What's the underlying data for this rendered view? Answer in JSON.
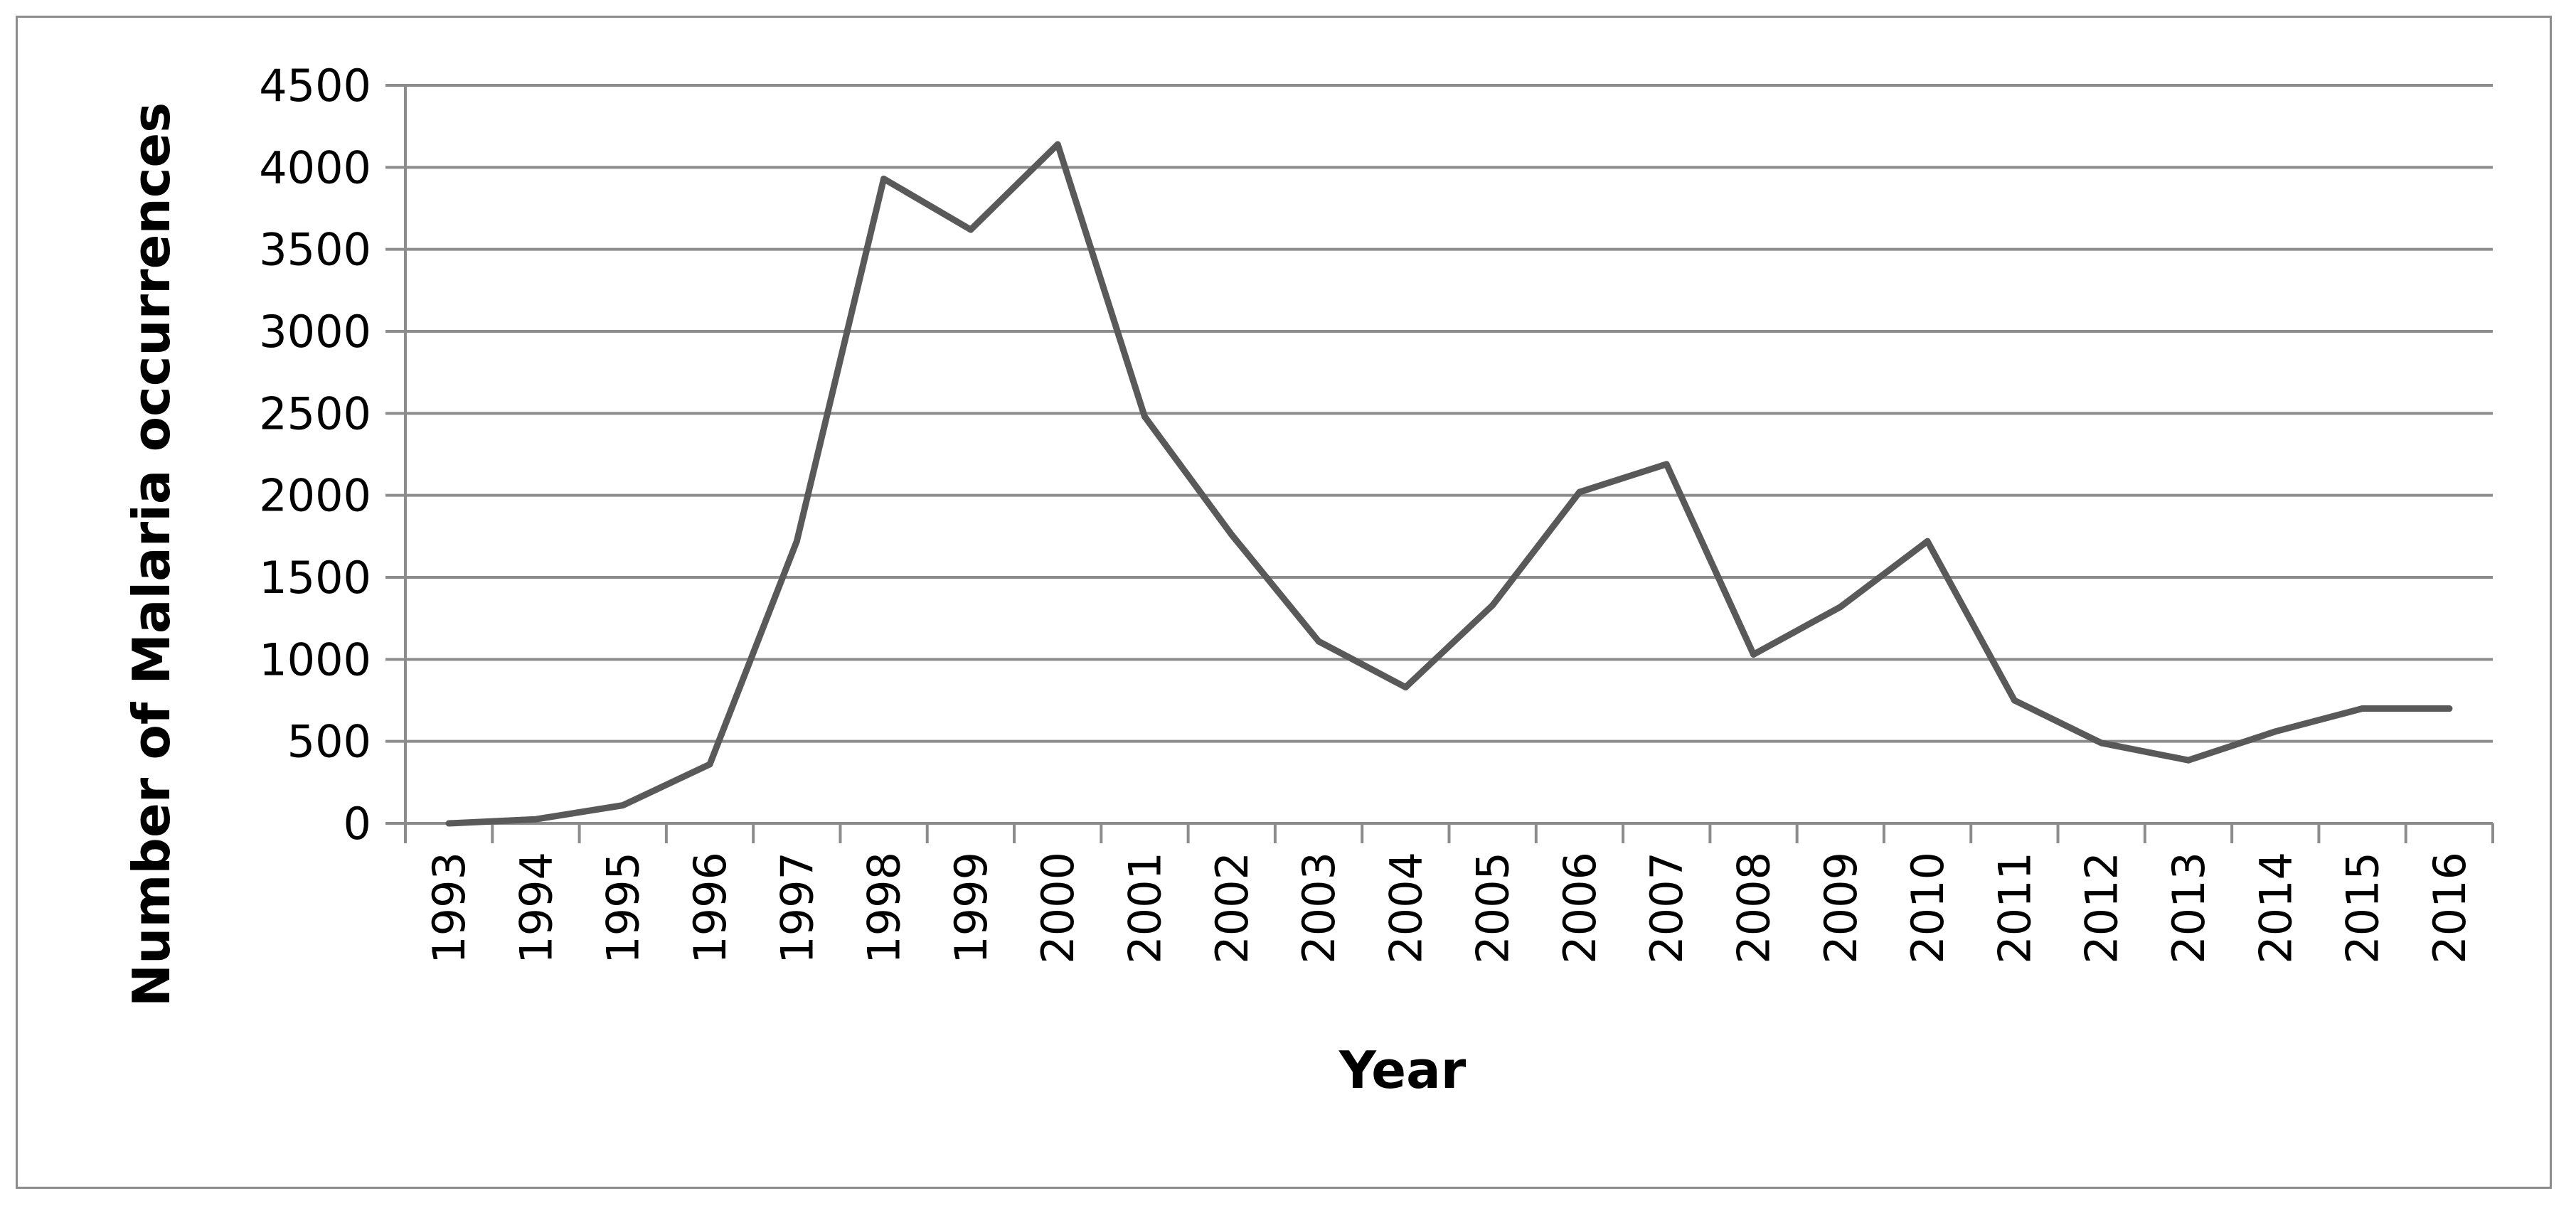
{
  "chart_data": {
    "type": "line",
    "title": "",
    "xlabel": "Year",
    "ylabel": "Number of Malaria occurrences",
    "categories": [
      "1993",
      "1994",
      "1995",
      "1996",
      "1997",
      "1998",
      "1999",
      "2000",
      "2001",
      "2002",
      "2003",
      "2004",
      "2005",
      "2006",
      "2007",
      "2008",
      "2009",
      "2010",
      "2011",
      "2012",
      "2013",
      "2014",
      "2015",
      "2016"
    ],
    "series": [
      {
        "values": [
          0,
          25,
          110,
          360,
          1720,
          3930,
          3620,
          4140,
          2480,
          1760,
          1110,
          830,
          1330,
          2020,
          2190,
          1030,
          1320,
          1720,
          750,
          490,
          385,
          560,
          700,
          700
        ]
      }
    ],
    "ylim": [
      0,
      4500
    ],
    "yticks": [
      0,
      500,
      1000,
      1500,
      2000,
      2500,
      3000,
      3500,
      4000,
      4500
    ],
    "grid": true,
    "legend": "none",
    "colors": {
      "line": "#595959",
      "grid": "#8c8c8c",
      "axis": "#8c8c8c",
      "frame": "#8c8c8c"
    }
  }
}
